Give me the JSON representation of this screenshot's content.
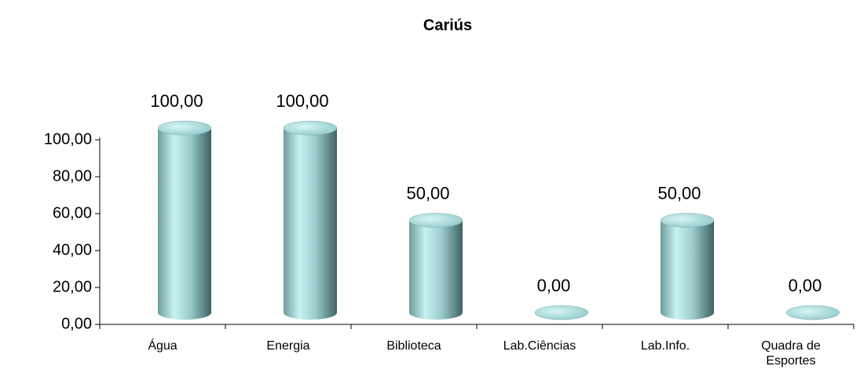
{
  "chart_data": {
    "type": "bar",
    "title": "Cariús",
    "categories": [
      "Água",
      "Energia",
      "Biblioteca",
      "Lab.Ciências",
      "Lab.Info.",
      "Quadra de Esportes"
    ],
    "values": [
      100,
      100,
      50,
      0,
      50,
      0
    ],
    "value_labels": [
      "100,00",
      "100,00",
      "50,00",
      "0,00",
      "50,00",
      "0,00"
    ],
    "color": "#8fc8c8",
    "ylim": [
      0,
      100
    ],
    "yticks": [
      {
        "value": 0,
        "label": "0,00"
      },
      {
        "value": 20,
        "label": "20,00"
      },
      {
        "value": 40,
        "label": "40,00"
      },
      {
        "value": 60,
        "label": "60,00"
      },
      {
        "value": 80,
        "label": "80,00"
      },
      {
        "value": 100,
        "label": "100,00"
      }
    ],
    "grid": false
  }
}
